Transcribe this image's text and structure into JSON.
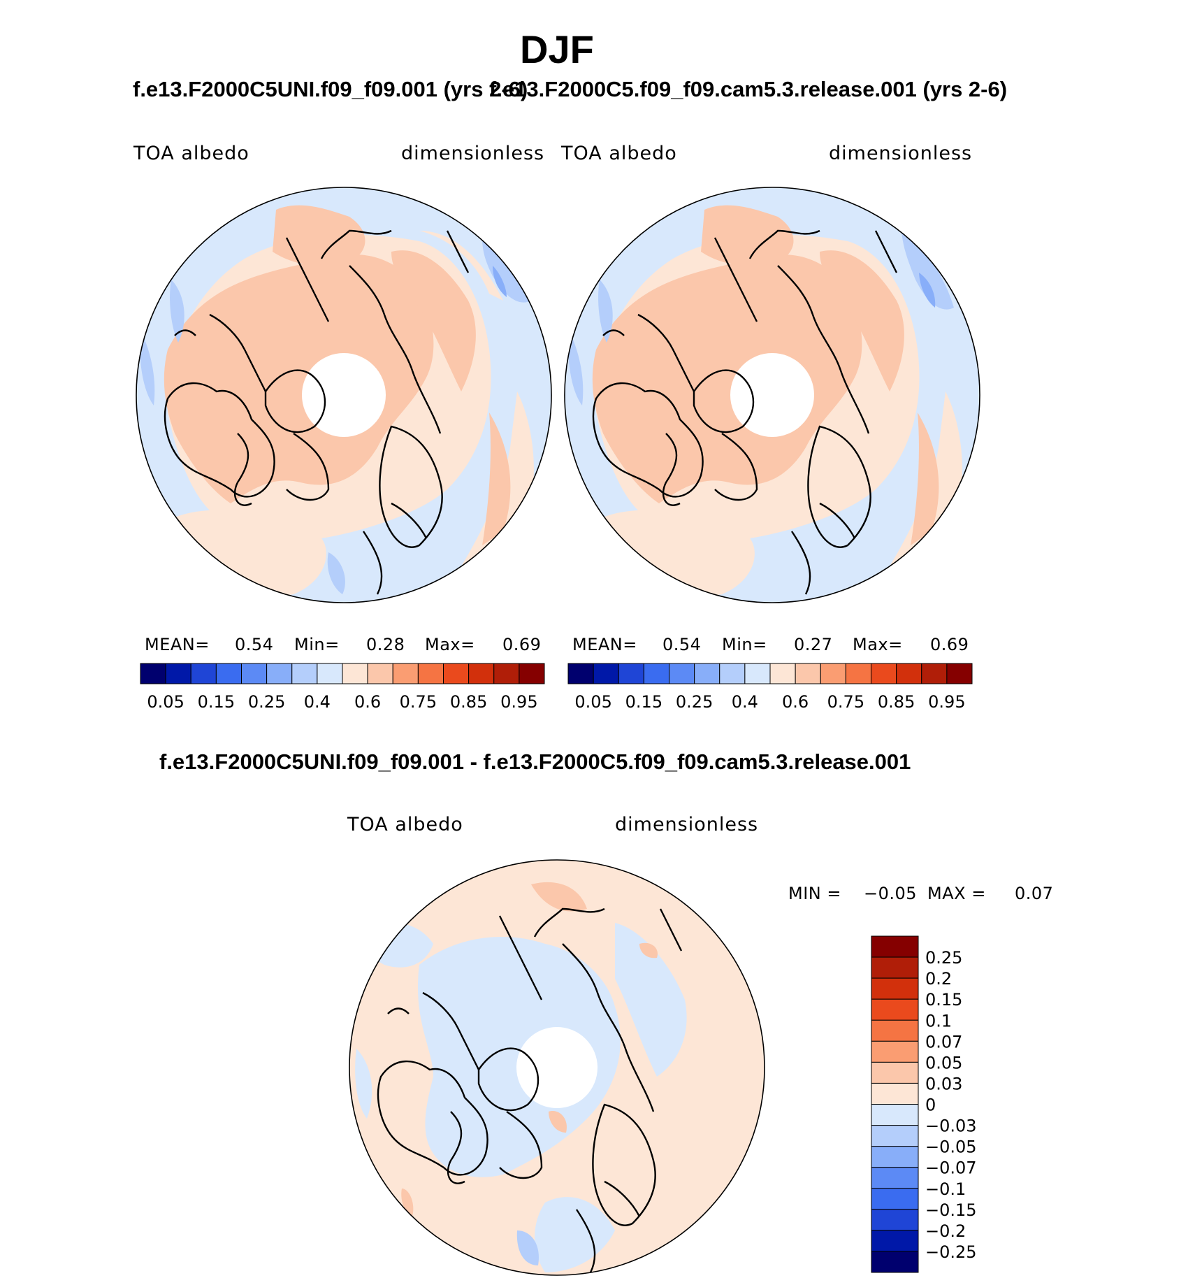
{
  "title": "DJF",
  "colors": {
    "coast": "#000000",
    "pole_hole": "#ffffff",
    "abs_scale": [
      "#00006e",
      "#0018a8",
      "#1f45d6",
      "#3a6cf0",
      "#5c8af5",
      "#88aef9",
      "#b4cefb",
      "#d8e8fc",
      "#fde6d6",
      "#fbc7ab",
      "#fa9d72",
      "#f57443",
      "#ea4a1d",
      "#d2300c",
      "#b01e08",
      "#850000"
    ],
    "diff_scale": [
      "#00006e",
      "#0018a8",
      "#1f45d6",
      "#3a6cf0",
      "#5c8af5",
      "#88aef9",
      "#b4cefb",
      "#d8e8fc",
      "#fde6d6",
      "#fbc7ab",
      "#fa9d72",
      "#f57443",
      "#ea4a1d",
      "#d2300c",
      "#850000"
    ]
  },
  "panels": [
    {
      "case": "f.e13.F2000C5UNI.f09_f09.001 (yrs 2-6)",
      "variable": "TOA albedo",
      "units": "dimensionless",
      "mean_label": "MEAN=",
      "mean": "0.54",
      "min_label": "Min=",
      "min": "0.28",
      "max_label": "Max=",
      "max": "0.69"
    },
    {
      "case": "f.e13.F2000C5.f09_f09.cam5.3.release.001 (yrs 2-6)",
      "variable": "TOA albedo",
      "units": "dimensionless",
      "mean_label": "MEAN=",
      "mean": "0.54",
      "min_label": "Min=",
      "min": "0.27",
      "max_label": "Max=",
      "max": "0.69"
    }
  ],
  "abs_ticks": [
    "0.05",
    "0.15",
    "0.25",
    "0.4",
    "0.6",
    "0.75",
    "0.85",
    "0.95"
  ],
  "diff": {
    "case": "f.e13.F2000C5UNI.f09_f09.001 - f.e13.F2000C5.f09_f09.cam5.3.release.001",
    "variable": "TOA albedo",
    "units": "dimensionless",
    "min_label": "MIN =",
    "min": "−0.05",
    "max_label": "MAX =",
    "max": "0.07",
    "ticks": [
      "0.25",
      "0.2",
      "0.15",
      "0.1",
      "0.07",
      "0.05",
      "0.03",
      "0",
      "−0.03",
      "−0.05",
      "−0.07",
      "−0.1",
      "−0.15",
      "−0.2",
      "−0.25"
    ]
  },
  "chart_data": [
    {
      "type": "heatmap",
      "projection": "north polar stereographic",
      "title": "f.e13.F2000C5UNI.f09_f09.001 (yrs 2-6)",
      "variable": "TOA albedo",
      "units": "dimensionless",
      "season": "DJF",
      "stats": {
        "mean": 0.54,
        "min": 0.28,
        "max": 0.69
      },
      "contour_levels": [
        0.05,
        0.1,
        0.15,
        0.2,
        0.25,
        0.3,
        0.4,
        0.5,
        0.6,
        0.65,
        0.75,
        0.8,
        0.85,
        0.9,
        0.95
      ]
    },
    {
      "type": "heatmap",
      "projection": "north polar stereographic",
      "title": "f.e13.F2000C5.f09_f09.cam5.3.release.001 (yrs 2-6)",
      "variable": "TOA albedo",
      "units": "dimensionless",
      "season": "DJF",
      "stats": {
        "mean": 0.54,
        "min": 0.27,
        "max": 0.69
      },
      "contour_levels": [
        0.05,
        0.1,
        0.15,
        0.2,
        0.25,
        0.3,
        0.4,
        0.5,
        0.6,
        0.65,
        0.75,
        0.8,
        0.85,
        0.9,
        0.95
      ]
    },
    {
      "type": "heatmap",
      "projection": "north polar stereographic",
      "title": "f.e13.F2000C5UNI.f09_f09.001 - f.e13.F2000C5.f09_f09.cam5.3.release.001",
      "variable": "TOA albedo",
      "units": "dimensionless",
      "season": "DJF",
      "stats": {
        "min": -0.05,
        "max": 0.07
      },
      "contour_levels": [
        -0.25,
        -0.2,
        -0.15,
        -0.1,
        -0.07,
        -0.05,
        -0.03,
        0,
        0.03,
        0.05,
        0.07,
        0.1,
        0.15,
        0.2,
        0.25
      ]
    }
  ]
}
